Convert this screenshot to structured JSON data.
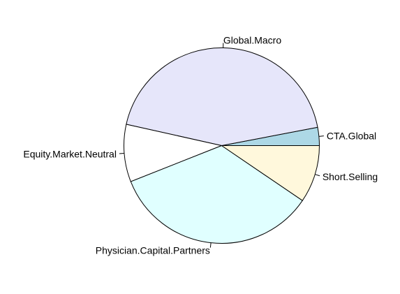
{
  "chart_data": {
    "type": "pie",
    "title": "",
    "slices": [
      {
        "label": "CTA.Global",
        "value": 3.0,
        "color": "#add8e6"
      },
      {
        "label": "Global.Macro",
        "value": 43.5,
        "color": "#e6e6fa"
      },
      {
        "label": "Equity.Market.Neutral",
        "value": 9.5,
        "color": "#ffffff"
      },
      {
        "label": "Physician.Capital.Partners",
        "value": 34.5,
        "color": "#e0ffff"
      },
      {
        "label": "Short.Selling",
        "value": 9.5,
        "color": "#fff8dc"
      }
    ],
    "start_angle_deg": 0,
    "direction": "counterclockwise"
  }
}
